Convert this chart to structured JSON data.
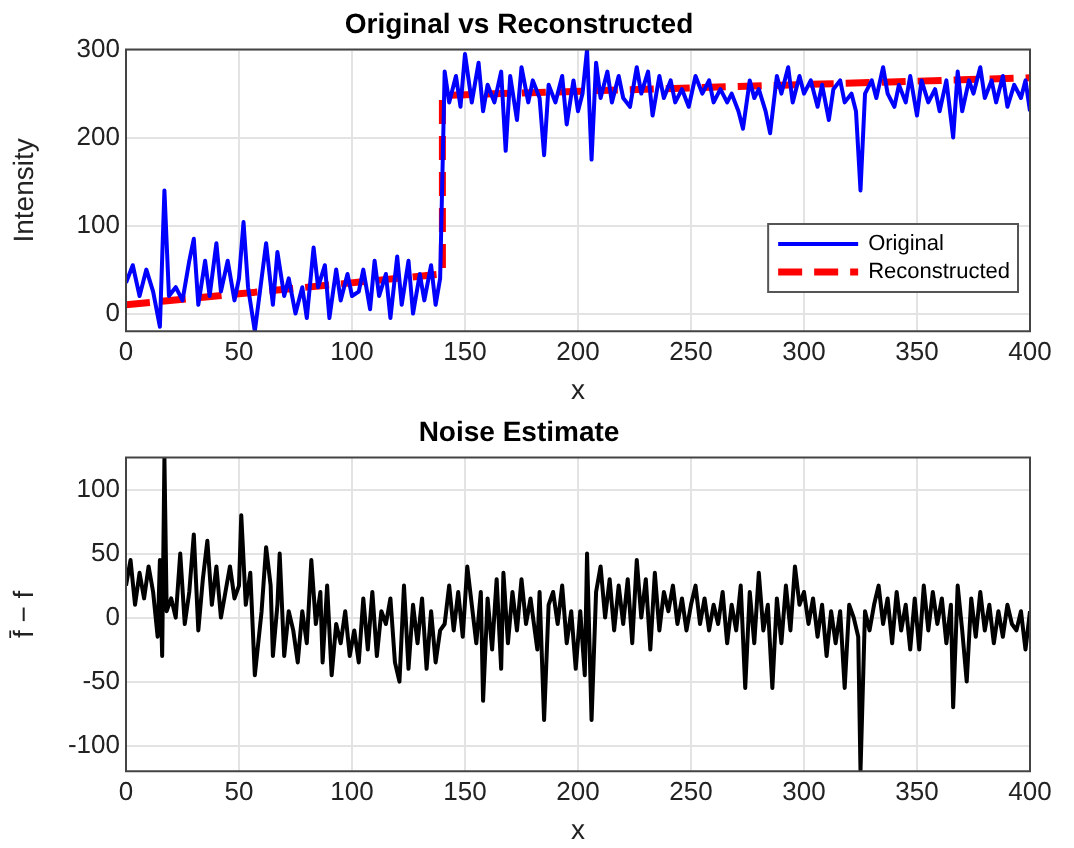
{
  "chart_data": [
    {
      "type": "line",
      "title": "Original vs Reconstructed",
      "xlabel": "x",
      "ylabel": "Intensity",
      "xlim": [
        0,
        400
      ],
      "xticks": [
        0,
        50,
        100,
        150,
        200,
        250,
        300,
        350,
        400
      ],
      "ylim": [
        -20,
        300
      ],
      "yticks": [
        0,
        100,
        200,
        300
      ],
      "grid": true,
      "legend": "right",
      "marker": "none",
      "series": [
        {
          "name": "Original",
          "color": "#0000ff",
          "line_style": "solid",
          "x": [
            0,
            3,
            6,
            9,
            12,
            15,
            17,
            19,
            22,
            25,
            28,
            30,
            32,
            35,
            37,
            40,
            42,
            45,
            48,
            50,
            52,
            54,
            57,
            60,
            62,
            65,
            67,
            70,
            72,
            75,
            78,
            80,
            83,
            85,
            88,
            90,
            93,
            95,
            98,
            100,
            103,
            105,
            108,
            110,
            112,
            115,
            117,
            120,
            122,
            125,
            127,
            130,
            132,
            135,
            137,
            139,
            141,
            143,
            146,
            148,
            150,
            153,
            156,
            158,
            160,
            163,
            166,
            168,
            170,
            173,
            175,
            178,
            180,
            183,
            185,
            187,
            190,
            193,
            195,
            198,
            200,
            202,
            204,
            206,
            208,
            210,
            213,
            215,
            218,
            220,
            223,
            226,
            228,
            231,
            233,
            236,
            238,
            241,
            243,
            246,
            249,
            252,
            255,
            258,
            260,
            263,
            266,
            268,
            271,
            273,
            276,
            278,
            280,
            283,
            285,
            288,
            290,
            293,
            295,
            298,
            300,
            303,
            306,
            308,
            311,
            313,
            316,
            318,
            321,
            323,
            325,
            327,
            330,
            332,
            335,
            337,
            340,
            342,
            345,
            347,
            350,
            352,
            355,
            358,
            360,
            363,
            366,
            368,
            370,
            373,
            375,
            378,
            380,
            383,
            385,
            388,
            390,
            393,
            396,
            398,
            400
          ],
          "values": [
            35,
            55,
            20,
            50,
            25,
            -15,
            140,
            20,
            30,
            15,
            60,
            85,
            10,
            60,
            20,
            80,
            25,
            60,
            15,
            40,
            104,
            30,
            -20,
            40,
            80,
            10,
            70,
            20,
            40,
            0,
            30,
            -5,
            75,
            30,
            55,
            -5,
            50,
            15,
            45,
            20,
            25,
            50,
            5,
            60,
            20,
            45,
            -5,
            65,
            10,
            60,
            0,
            45,
            15,
            55,
            10,
            40,
            275,
            240,
            270,
            235,
            295,
            240,
            285,
            230,
            260,
            240,
            275,
            185,
            270,
            220,
            280,
            240,
            265,
            245,
            180,
            260,
            240,
            270,
            215,
            265,
            230,
            250,
            300,
            175,
            285,
            245,
            275,
            240,
            270,
            245,
            235,
            280,
            250,
            275,
            225,
            270,
            245,
            265,
            240,
            255,
            235,
            270,
            250,
            265,
            240,
            255,
            240,
            250,
            230,
            210,
            265,
            245,
            255,
            230,
            205,
            270,
            250,
            280,
            240,
            270,
            250,
            265,
            235,
            260,
            220,
            255,
            265,
            240,
            250,
            230,
            140,
            250,
            265,
            245,
            280,
            250,
            235,
            260,
            240,
            270,
            225,
            265,
            240,
            255,
            230,
            265,
            200,
            275,
            230,
            265,
            250,
            280,
            245,
            265,
            240,
            270,
            235,
            260,
            245,
            265,
            230
          ]
        },
        {
          "name": "Reconstructed",
          "color": "#ff0000",
          "line_style": "dashed",
          "x": [
            0,
            140,
            140,
            400
          ],
          "values": [
            10,
            45,
            248,
            268
          ]
        }
      ]
    },
    {
      "type": "line",
      "title": "Noise Estimate",
      "xlabel": "x",
      "ylabel": "f̄ − f",
      "xlim": [
        0,
        400
      ],
      "xticks": [
        0,
        50,
        100,
        150,
        200,
        250,
        300,
        350,
        400
      ],
      "ylim": [
        -120,
        125
      ],
      "yticks": [
        -100,
        -50,
        0,
        50,
        100
      ],
      "grid": true,
      "marker": "none",
      "series": [
        {
          "color": "#000000",
          "line_style": "solid",
          "x": [
            0,
            2,
            4,
            6,
            8,
            10,
            12,
            14,
            15,
            16,
            17,
            18,
            20,
            22,
            24,
            26,
            28,
            30,
            32,
            34,
            36,
            38,
            40,
            42,
            44,
            46,
            48,
            50,
            51,
            53,
            55,
            57,
            60,
            62,
            64,
            65,
            67,
            68,
            70,
            72,
            74,
            76,
            78,
            80,
            82,
            84,
            86,
            87,
            89,
            91,
            93,
            95,
            97,
            99,
            101,
            103,
            105,
            107,
            109,
            111,
            113,
            115,
            117,
            119,
            121,
            123,
            125,
            127,
            129,
            131,
            133,
            135,
            137,
            139,
            141,
            143,
            145,
            147,
            149,
            151,
            153,
            155,
            157,
            158,
            160,
            162,
            164,
            166,
            167,
            169,
            171,
            173,
            175,
            177,
            179,
            182,
            183,
            185,
            187,
            189,
            191,
            193,
            195,
            197,
            199,
            201,
            203,
            204,
            206,
            208,
            210,
            212,
            214,
            216,
            218,
            220,
            222,
            224,
            226,
            228,
            230,
            232,
            234,
            236,
            238,
            240,
            242,
            244,
            246,
            248,
            250,
            252,
            254,
            256,
            258,
            260,
            262,
            264,
            266,
            268,
            270,
            272,
            274,
            276,
            278,
            280,
            282,
            284,
            286,
            288,
            290,
            292,
            294,
            296,
            298,
            300,
            302,
            304,
            306,
            308,
            310,
            312,
            314,
            316,
            318,
            320,
            322,
            324,
            325,
            327,
            329,
            331,
            333,
            335,
            337,
            339,
            341,
            343,
            345,
            347,
            349,
            351,
            353,
            355,
            357,
            359,
            361,
            363,
            365,
            366,
            368,
            370,
            372,
            374,
            376,
            378,
            380,
            382,
            384,
            386,
            388,
            390,
            392,
            394,
            396,
            398,
            400
          ],
          "values": [
            25,
            45,
            10,
            35,
            15,
            40,
            20,
            -15,
            45,
            -30,
            125,
            5,
            15,
            0,
            50,
            -5,
            20,
            65,
            -10,
            30,
            60,
            10,
            40,
            0,
            20,
            40,
            15,
            25,
            80,
            10,
            35,
            -45,
            5,
            55,
            25,
            -30,
            10,
            50,
            -30,
            5,
            -10,
            -35,
            5,
            -20,
            45,
            -5,
            20,
            -35,
            25,
            -45,
            -5,
            -20,
            5,
            -30,
            -10,
            -35,
            15,
            -25,
            20,
            -30,
            5,
            -5,
            15,
            -35,
            -50,
            25,
            -40,
            10,
            -20,
            15,
            -40,
            5,
            -35,
            -10,
            -5,
            25,
            -10,
            20,
            -15,
            40,
            10,
            -20,
            20,
            -65,
            15,
            -25,
            30,
            -40,
            35,
            -20,
            20,
            -10,
            30,
            -5,
            15,
            -25,
            20,
            -80,
            10,
            20,
            -5,
            25,
            -20,
            5,
            -40,
            5,
            -45,
            50,
            -80,
            20,
            40,
            0,
            30,
            -10,
            25,
            -5,
            30,
            -20,
            45,
            0,
            30,
            -25,
            35,
            -10,
            20,
            5,
            25,
            -5,
            15,
            -10,
            10,
            25,
            -5,
            15,
            -10,
            10,
            -5,
            20,
            -20,
            10,
            -10,
            25,
            -55,
            20,
            -20,
            35,
            -10,
            10,
            -55,
            15,
            -20,
            25,
            -10,
            40,
            10,
            20,
            -5,
            15,
            -15,
            10,
            -30,
            5,
            -20,
            5,
            -55,
            10,
            0,
            -15,
            -120,
            5,
            -10,
            10,
            25,
            -5,
            15,
            -20,
            20,
            -10,
            10,
            -25,
            15,
            -25,
            25,
            -10,
            20,
            -5,
            15,
            -20,
            10,
            -70,
            25,
            -10,
            -50,
            15,
            -15,
            20,
            -10,
            10,
            -20,
            5,
            -15,
            10,
            -5,
            -10,
            5,
            -25,
            5
          ]
        }
      ]
    }
  ]
}
